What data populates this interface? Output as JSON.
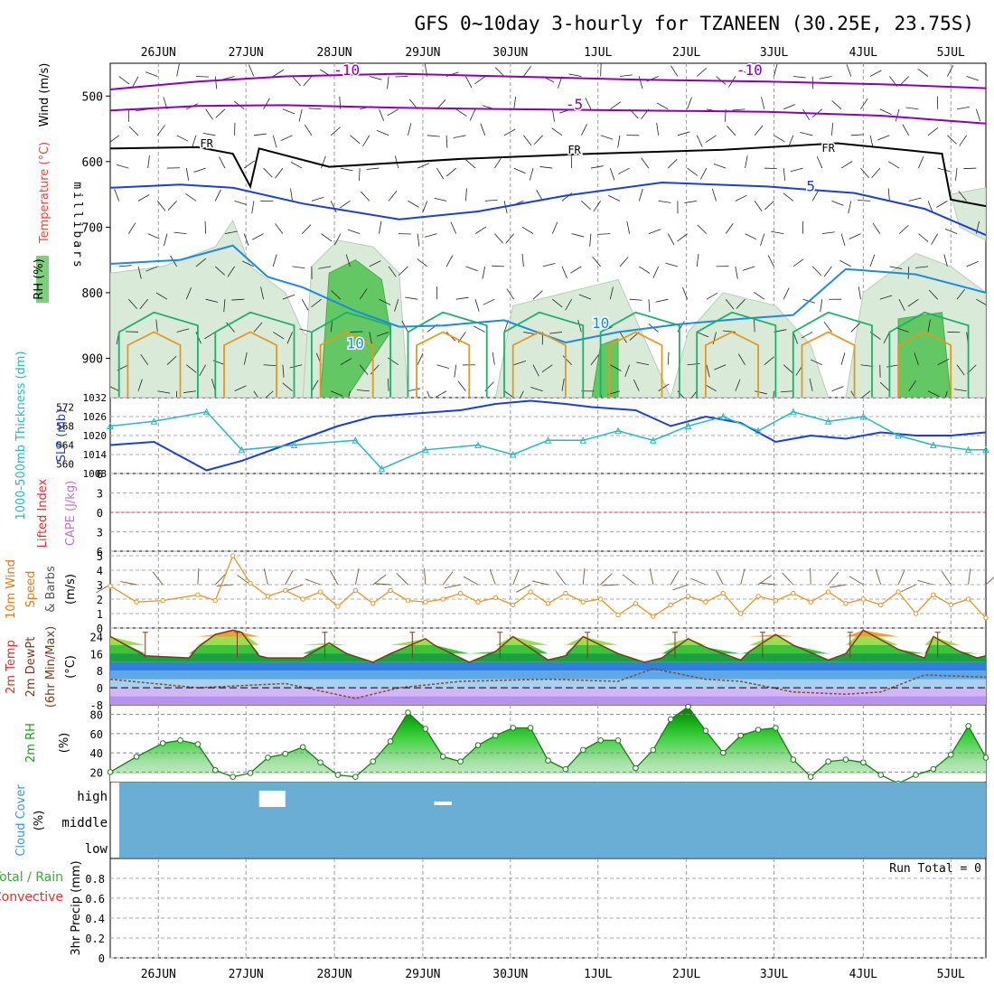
{
  "title": "GFS 0~10day 3-hourly for TZANEEN (30.25E, 23.75S)",
  "dates": [
    "26JUN",
    "27JUN",
    "28JUN",
    "29JUN",
    "30JUN",
    "1JUL",
    "2JUL",
    "3JUL",
    "4JUL",
    "5JUL"
  ],
  "chart_data": [
    {
      "panel": "upper-air",
      "type": "heatmap",
      "ylabel": "millibars",
      "ylim": [
        960,
        450
      ],
      "yticks": [
        500,
        600,
        700,
        800,
        900
      ],
      "labels": {
        "rh": "RH (%)",
        "temperature": "Temperature (°C)",
        "wind": "Wind (m/s)"
      },
      "contour_labels": [
        "-10",
        "-10",
        "-5",
        "FR",
        "FR",
        "FR",
        "5",
        "10",
        "10"
      ],
      "series": [
        {
          "name": "-10",
          "points": [
            [
              0,
              490
            ],
            [
              10,
              478
            ],
            [
              20,
              470
            ],
            [
              33,
              466
            ],
            [
              45,
              470
            ],
            [
              60,
              475
            ],
            [
              75,
              478
            ],
            [
              88,
              482
            ],
            [
              100,
              488
            ]
          ]
        },
        {
          "name": "-5",
          "points": [
            [
              0,
              522
            ],
            [
              10,
              515
            ],
            [
              20,
              514
            ],
            [
              33,
              518
            ],
            [
              45,
              520
            ],
            [
              60,
              522
            ],
            [
              75,
              524
            ],
            [
              88,
              530
            ],
            [
              100,
              542
            ]
          ]
        },
        {
          "name": "FR",
          "points": [
            [
              0,
              580
            ],
            [
              10,
              578
            ],
            [
              14,
              588
            ],
            [
              16,
              638
            ],
            [
              17,
              580
            ],
            [
              25,
              608
            ],
            [
              40,
              596
            ],
            [
              55,
              588
            ],
            [
              70,
              582
            ],
            [
              83,
              572
            ],
            [
              95,
              588
            ],
            [
              96,
              658
            ],
            [
              100,
              668
            ]
          ]
        },
        {
          "name": "5",
          "points": [
            [
              0,
              640
            ],
            [
              8,
              635
            ],
            [
              14,
              640
            ],
            [
              22,
              664
            ],
            [
              33,
              688
            ],
            [
              42,
              676
            ],
            [
              52,
              652
            ],
            [
              63,
              632
            ],
            [
              75,
              638
            ],
            [
              85,
              648
            ],
            [
              93,
              672
            ],
            [
              100,
              712
            ]
          ]
        },
        {
          "name": "10",
          "points": [
            [
              0,
              756
            ],
            [
              8,
              750
            ],
            [
              14,
              728
            ],
            [
              18,
              776
            ],
            [
              22,
              792
            ],
            [
              28,
              828
            ],
            [
              33,
              852
            ],
            [
              38,
              850
            ],
            [
              45,
              842
            ],
            [
              52,
              876
            ],
            [
              58,
              860
            ],
            [
              65,
              848
            ],
            [
              72,
              840
            ],
            [
              78,
              834
            ],
            [
              84,
              764
            ],
            [
              92,
              772
            ],
            [
              100,
              800
            ]
          ]
        }
      ]
    },
    {
      "panel": "thickness-slp",
      "type": "line",
      "ylabel_left": "1000-500mb Thickness (dm)",
      "ylabel_right": "SLP (mb)",
      "ylim_left": [
        558,
        574
      ],
      "yticks_left": [
        560,
        564,
        568,
        572
      ],
      "ylim_right": [
        1008,
        1032
      ],
      "yticks_right": [
        1008,
        1014,
        1020,
        1026,
        1032
      ],
      "series": [
        {
          "name": "SLP (mb)",
          "x": [
            0,
            5,
            11,
            15,
            21,
            26,
            30,
            40,
            44,
            48,
            52,
            55,
            60,
            64,
            68,
            72,
            76,
            80,
            84,
            88,
            92,
            96,
            100
          ],
          "values": [
            1017,
            1018,
            1009,
            1012,
            1018,
            1023,
            1026,
            1028,
            1030,
            1031,
            1030,
            1029,
            1028,
            1023,
            1026,
            1024,
            1018,
            1020,
            1019,
            1021,
            1020,
            1020,
            1021
          ]
        },
        {
          "name": "1000-500mb Thickness (dm)",
          "x": [
            0,
            5,
            11,
            15,
            21,
            28,
            31,
            36,
            42,
            46,
            50,
            54,
            58,
            62,
            66,
            70,
            74,
            78,
            82,
            86,
            90,
            94,
            98,
            100
          ],
          "values": [
            568,
            569,
            571,
            563,
            564,
            565,
            559,
            563,
            564,
            562,
            565,
            565,
            567,
            565,
            568,
            570,
            567,
            571,
            569,
            570,
            566,
            564,
            563,
            563
          ]
        }
      ]
    },
    {
      "panel": "lifted-index-cape",
      "type": "line",
      "ylabel_left": "Lifted Index",
      "ylabel_right": "CAPE (J/kg)",
      "ylim": [
        6,
        -6
      ],
      "yticks": [
        -6,
        -3,
        0,
        3,
        6
      ],
      "reference": 0
    },
    {
      "panel": "wind-10m",
      "type": "line",
      "ylabel": "10m Wind Speed & Barbs (m/s)",
      "ylim": [
        0,
        5
      ],
      "yticks": [
        0,
        1,
        2,
        3,
        4,
        5
      ],
      "series": [
        {
          "name": "10m Wind Speed",
          "x": [
            0,
            3,
            6,
            10,
            12,
            14,
            16,
            18,
            20,
            22,
            24,
            26,
            28,
            30,
            32,
            34,
            36,
            38,
            40,
            42,
            44,
            46,
            48,
            50,
            52,
            54,
            56,
            58,
            60,
            62,
            64,
            66,
            68,
            70,
            72,
            74,
            76,
            78,
            80,
            82,
            84,
            86,
            88,
            90,
            92,
            94,
            96,
            98,
            100
          ],
          "values": [
            2.9,
            1.8,
            1.9,
            2.3,
            1.9,
            5.0,
            3.1,
            2.2,
            2.6,
            2.0,
            2.5,
            1.5,
            2.6,
            1.7,
            2.6,
            1.9,
            1.8,
            2.0,
            2.4,
            1.8,
            2.1,
            1.6,
            2.5,
            1.7,
            2.4,
            1.8,
            2.0,
            0.9,
            1.7,
            0.8,
            1.6,
            2.2,
            1.8,
            2.4,
            1.0,
            2.2,
            1.9,
            2.4,
            1.8,
            2.5,
            1.7,
            2.0,
            1.6,
            2.5,
            1.0,
            2.3,
            1.6,
            2.0,
            0.7
          ]
        }
      ]
    },
    {
      "panel": "2m-temp",
      "type": "area",
      "ylabel": "2m Temp 2m DewPt (6hr Min/Max) (°C)",
      "ylim": [
        -8,
        28
      ],
      "yticks": [
        -8,
        0,
        8,
        16,
        24
      ],
      "series": [
        {
          "name": "2m Temp",
          "x": [
            0,
            4,
            9,
            10,
            12,
            14,
            15,
            17,
            18,
            22,
            25,
            27,
            30,
            32,
            36,
            37,
            41,
            44,
            46,
            50,
            52,
            54,
            58,
            61,
            63,
            66,
            68,
            72,
            73,
            76,
            78,
            82,
            84,
            86,
            90,
            93,
            94,
            97,
            99,
            100
          ],
          "values": [
            24,
            15,
            14,
            19,
            25,
            27,
            26,
            15,
            14,
            14,
            21,
            16,
            12,
            16,
            23,
            20,
            12,
            17,
            24,
            13,
            15,
            24,
            16,
            12,
            14,
            23,
            19,
            13,
            17,
            25,
            20,
            13,
            16,
            27,
            18,
            14,
            24,
            17,
            14,
            15
          ]
        },
        {
          "name": "2m DewPt",
          "x": [
            0,
            10,
            20,
            28,
            33,
            40,
            50,
            58,
            62,
            68,
            72,
            78,
            84,
            88,
            93,
            100
          ],
          "values": [
            4,
            0,
            2,
            -5,
            0,
            3,
            4,
            3,
            9,
            4,
            3,
            -2,
            -3,
            -2,
            6,
            5
          ]
        }
      ]
    },
    {
      "panel": "2m-rh",
      "type": "area",
      "ylabel": "2m RH (%)",
      "ylim": [
        10,
        90
      ],
      "yticks": [
        20,
        40,
        60,
        80
      ],
      "series": [
        {
          "name": "2m RH",
          "x": [
            0,
            3,
            6,
            8,
            10,
            12,
            14,
            16,
            18,
            20,
            22,
            24,
            26,
            28,
            30,
            32,
            34,
            36,
            38,
            40,
            42,
            44,
            46,
            48,
            50,
            52,
            54,
            56,
            58,
            60,
            62,
            64,
            66,
            68,
            70,
            72,
            74,
            76,
            78,
            80,
            82,
            84,
            86,
            88,
            90,
            92,
            94,
            96,
            98,
            100
          ],
          "values": [
            20,
            36,
            50,
            53,
            49,
            22,
            15,
            19,
            35,
            39,
            46,
            30,
            17,
            15,
            31,
            52,
            82,
            65,
            36,
            31,
            48,
            58,
            66,
            66,
            32,
            23,
            43,
            53,
            53,
            24,
            43,
            75,
            88,
            63,
            40,
            58,
            64,
            66,
            33,
            15,
            31,
            33,
            30,
            17,
            8,
            17,
            23,
            38,
            68,
            35
          ]
        }
      ]
    },
    {
      "panel": "cloud-cover",
      "type": "bar",
      "ylabel": "Cloud Cover (%)",
      "levels": [
        "high",
        "middle",
        "low"
      ],
      "background": "#6aaed6",
      "gaps": [
        {
          "x": [
            17,
            20
          ],
          "level": "high"
        },
        {
          "x": [
            37,
            39
          ],
          "level": "high"
        }
      ]
    },
    {
      "panel": "precip",
      "type": "bar",
      "ylabel": "3hr Precip (mm)",
      "legend_total": "Total / Rain",
      "legend_conv": "Convective",
      "run_total": "Run Total = 0",
      "ylim": [
        0,
        1
      ],
      "yticks": [
        0,
        0.2,
        0.4,
        0.6,
        0.8
      ]
    }
  ],
  "colors": {
    "purple": "#8a00b8",
    "black": "#000000",
    "blue1": "#1c3fd0",
    "blue2": "#1d8ae0",
    "green": "#18b26a",
    "orange": "#e29a1e",
    "slp": "#1c3fd0",
    "thickness": "#2ab7c0",
    "wind": "#e0962e",
    "cloud": "#6aaed6"
  }
}
